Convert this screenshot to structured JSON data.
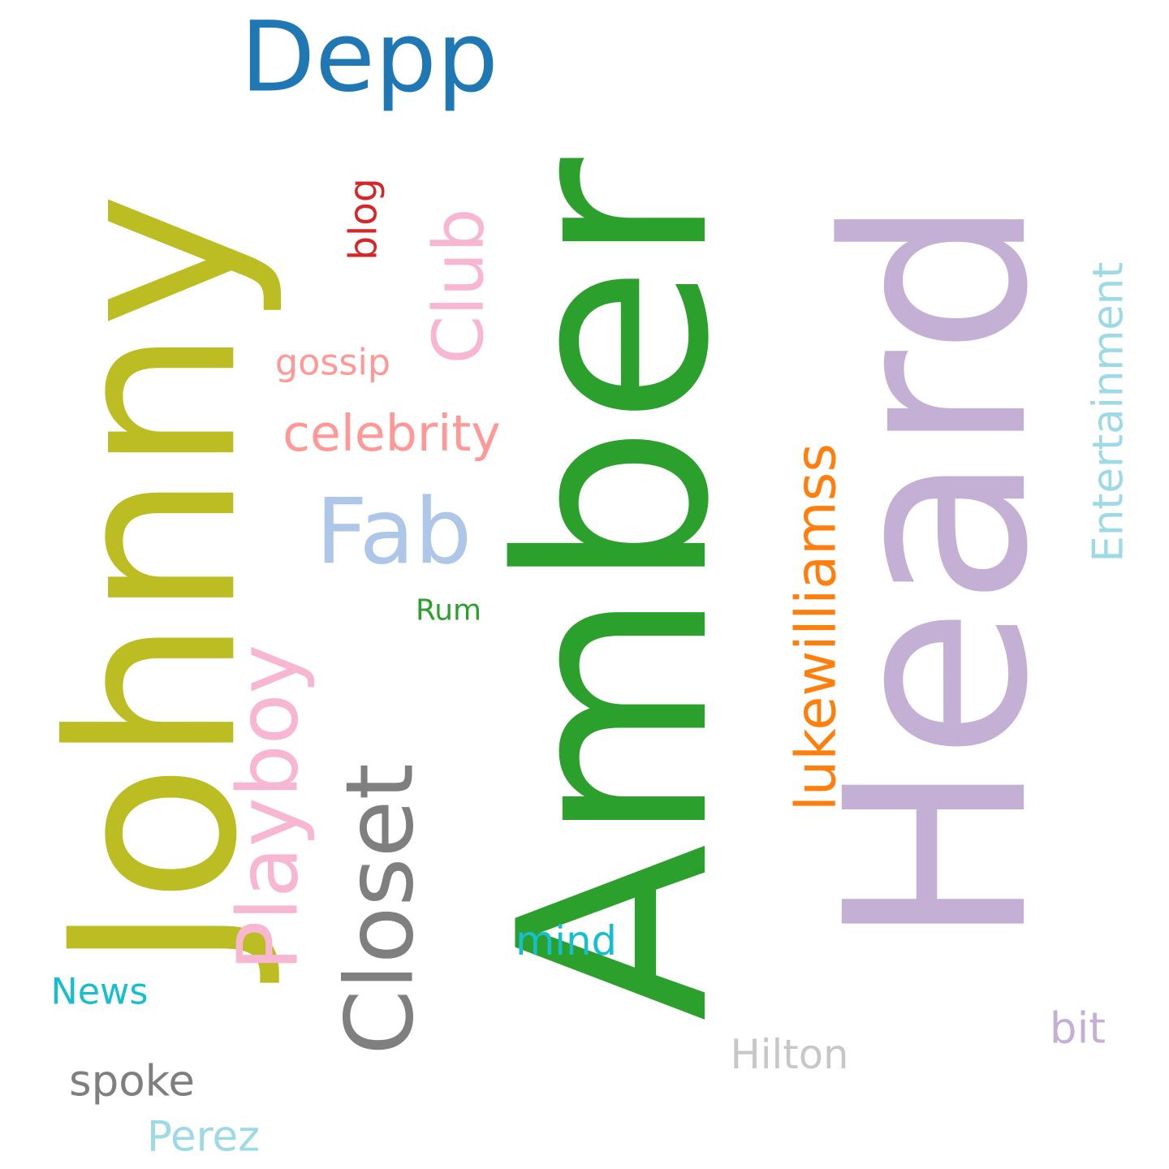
{
  "words": [
    {
      "text": "Amber",
      "color": "#2ca02c",
      "orientation": "vertical"
    },
    {
      "text": "Heard",
      "color": "#c5b0d5",
      "orientation": "vertical"
    },
    {
      "text": "Johnny",
      "color": "#bcbd22",
      "orientation": "vertical"
    },
    {
      "text": "Depp",
      "color": "#1f77b4",
      "orientation": "horizontal"
    },
    {
      "text": "Closet",
      "color": "#7f7f7f",
      "orientation": "vertical"
    },
    {
      "text": "Playboy",
      "color": "#f7b6d2",
      "orientation": "vertical"
    },
    {
      "text": "Fab",
      "color": "#aec7e8",
      "orientation": "horizontal"
    },
    {
      "text": "lukewilliamss",
      "color": "#ff7f0e",
      "orientation": "vertical"
    },
    {
      "text": "Club",
      "color": "#f7b6d2",
      "orientation": "vertical"
    },
    {
      "text": "celebrity",
      "color": "#ff9896",
      "orientation": "horizontal"
    },
    {
      "text": "Entertainment",
      "color": "#9edae5",
      "orientation": "vertical"
    },
    {
      "text": "gossip",
      "color": "#ff9896",
      "orientation": "horizontal"
    },
    {
      "text": "blog",
      "color": "#d62728",
      "orientation": "vertical"
    },
    {
      "text": "mind",
      "color": "#17becf",
      "orientation": "horizontal"
    },
    {
      "text": "News",
      "color": "#17becf",
      "orientation": "horizontal"
    },
    {
      "text": "spoke",
      "color": "#7f7f7f",
      "orientation": "horizontal"
    },
    {
      "text": "Hilton",
      "color": "#c7c7c7",
      "orientation": "horizontal"
    },
    {
      "text": "bit",
      "color": "#c5b0d5",
      "orientation": "horizontal"
    },
    {
      "text": "Perez",
      "color": "#9edae5",
      "orientation": "horizontal"
    },
    {
      "text": "Rum",
      "color": "#2ca02c",
      "orientation": "horizontal"
    }
  ]
}
